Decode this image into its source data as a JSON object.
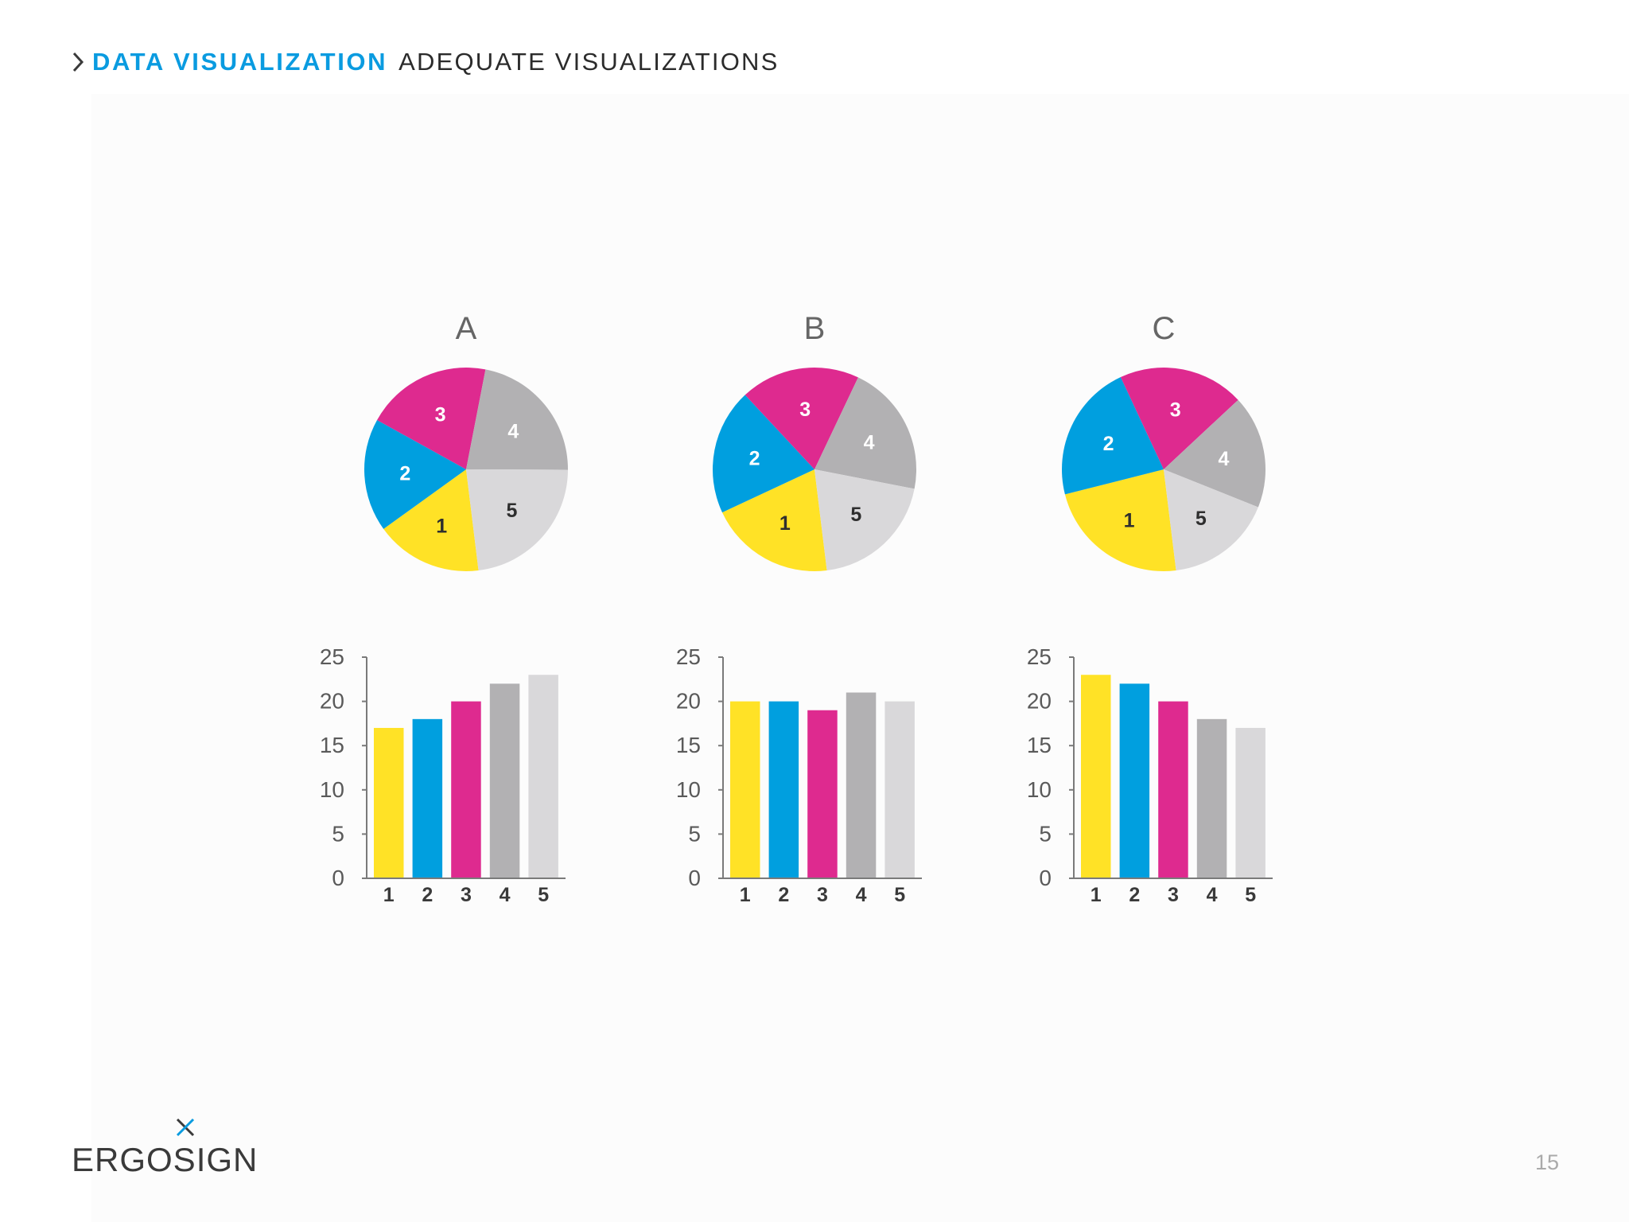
{
  "header": {
    "icon": "chevron-right-icon",
    "section": "DATA VISUALIZATION",
    "title": "ADEQUATE VISUALIZATIONS"
  },
  "footer": {
    "logo_text": "ERGOSIGN",
    "logo_icon": "x-mark-icon",
    "page_number": "15"
  },
  "colors": {
    "accent": "#0a9be0",
    "series": [
      "#FFE226",
      "#009FDF",
      "#DE2A8F",
      "#B2B1B3",
      "#D9D8DA"
    ],
    "pie_label_colors": [
      "#2e2e2e",
      "#ffffff",
      "#ffffff",
      "#ffffff",
      "#2e2e2e"
    ]
  },
  "chart_data": [
    {
      "type": "pie",
      "title": "A",
      "categories": [
        "1",
        "2",
        "3",
        "4",
        "5"
      ],
      "values": [
        17,
        18,
        20,
        22,
        23
      ]
    },
    {
      "type": "pie",
      "title": "B",
      "categories": [
        "1",
        "2",
        "3",
        "4",
        "5"
      ],
      "values": [
        20,
        20,
        19,
        21,
        20
      ]
    },
    {
      "type": "pie",
      "title": "C",
      "categories": [
        "1",
        "2",
        "3",
        "4",
        "5"
      ],
      "values": [
        23,
        22,
        20,
        18,
        17
      ]
    },
    {
      "type": "bar",
      "title": "A",
      "categories": [
        "1",
        "2",
        "3",
        "4",
        "5"
      ],
      "values": [
        17,
        18,
        20,
        22,
        23
      ],
      "ylim": [
        0,
        25
      ],
      "yticks": [
        0,
        5,
        10,
        15,
        20,
        25
      ],
      "xlabel": "",
      "ylabel": "",
      "grid": false
    },
    {
      "type": "bar",
      "title": "B",
      "categories": [
        "1",
        "2",
        "3",
        "4",
        "5"
      ],
      "values": [
        20,
        20,
        19,
        21,
        20
      ],
      "ylim": [
        0,
        25
      ],
      "yticks": [
        0,
        5,
        10,
        15,
        20,
        25
      ],
      "xlabel": "",
      "ylabel": "",
      "grid": false
    },
    {
      "type": "bar",
      "title": "C",
      "categories": [
        "1",
        "2",
        "3",
        "4",
        "5"
      ],
      "values": [
        23,
        22,
        20,
        18,
        17
      ],
      "ylim": [
        0,
        25
      ],
      "yticks": [
        0,
        5,
        10,
        15,
        20,
        25
      ],
      "xlabel": "",
      "ylabel": "",
      "grid": false
    }
  ]
}
